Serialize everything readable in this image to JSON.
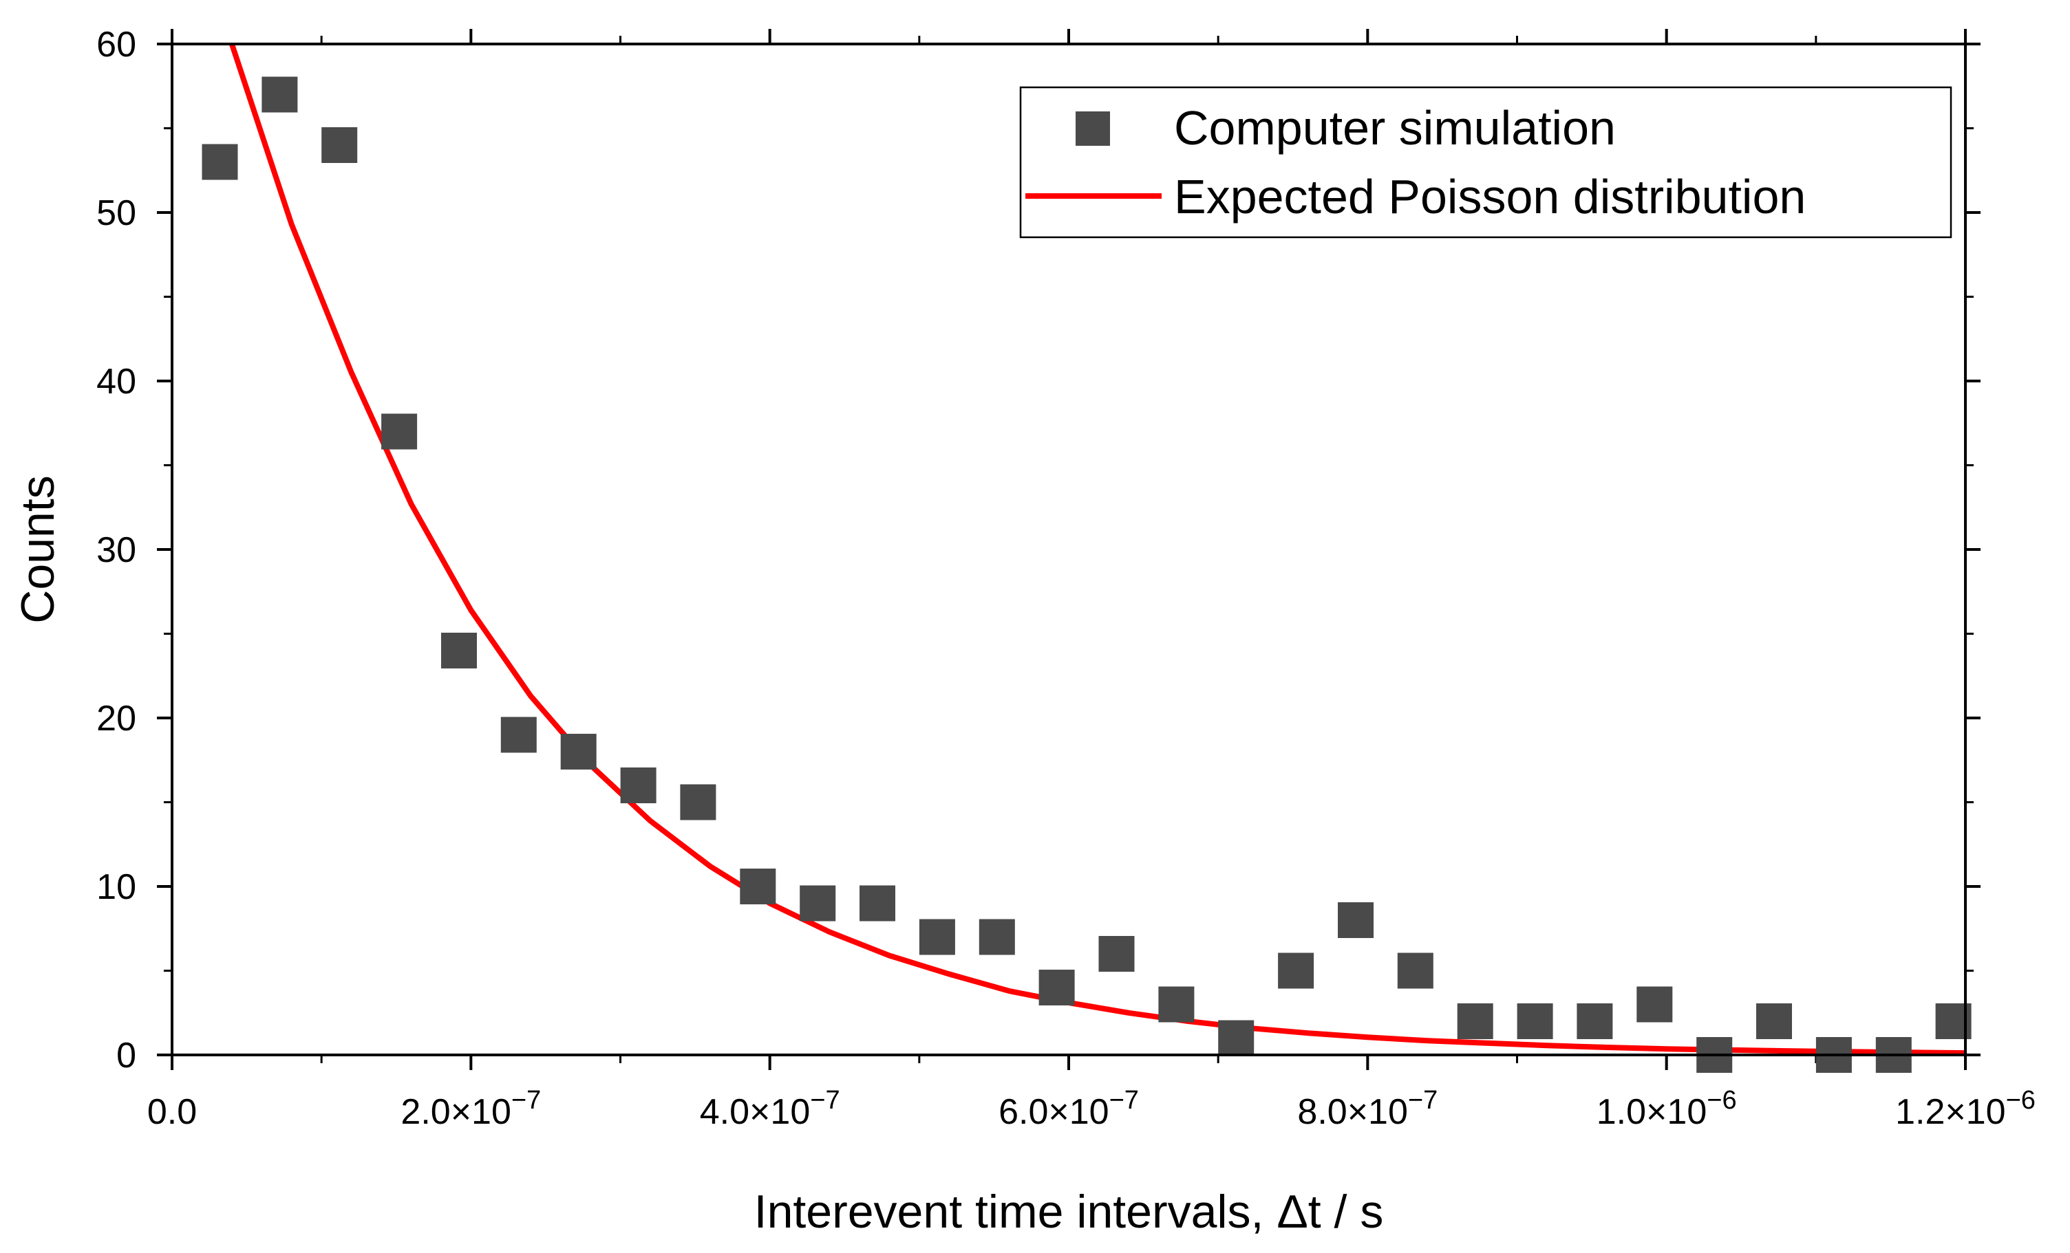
{
  "chart_data": {
    "type": "scatter",
    "title": "",
    "xlabel": "Interevent time intervals, Δt / s",
    "ylabel": "Counts",
    "xlim": [
      0,
      1.2e-06
    ],
    "ylim": [
      0,
      60
    ],
    "grid": false,
    "legend_position": "top-right",
    "x_ticks": [
      {
        "value": 0,
        "mantissa": "0.0",
        "exponent": ""
      },
      {
        "value": 2e-07,
        "mantissa": "2.0×10",
        "exponent": "−7"
      },
      {
        "value": 4e-07,
        "mantissa": "4.0×10",
        "exponent": "−7"
      },
      {
        "value": 6e-07,
        "mantissa": "6.0×10",
        "exponent": "−7"
      },
      {
        "value": 8e-07,
        "mantissa": "8.0×10",
        "exponent": "−7"
      },
      {
        "value": 1e-06,
        "mantissa": "1.0×10",
        "exponent": "−6"
      },
      {
        "value": 1.2e-06,
        "mantissa": "1.2×10",
        "exponent": "−6"
      }
    ],
    "y_ticks": [
      {
        "value": 0,
        "label": "0"
      },
      {
        "value": 10,
        "label": "10"
      },
      {
        "value": 20,
        "label": "20"
      },
      {
        "value": 30,
        "label": "30"
      },
      {
        "value": 40,
        "label": "40"
      },
      {
        "value": 50,
        "label": "50"
      },
      {
        "value": 60,
        "label": "60"
      }
    ],
    "series": [
      {
        "name": "Computer simulation",
        "kind": "scatter",
        "marker": "square",
        "color": "#4a4a4a",
        "x": [
          3.2e-08,
          7.2e-08,
          1.12e-07,
          1.52e-07,
          1.92e-07,
          2.32e-07,
          2.72e-07,
          3.12e-07,
          3.52e-07,
          3.92e-07,
          4.32e-07,
          4.72e-07,
          5.12e-07,
          5.52e-07,
          5.92e-07,
          6.32e-07,
          6.72e-07,
          7.12e-07,
          7.52e-07,
          7.92e-07,
          8.32e-07,
          8.72e-07,
          9.12e-07,
          9.52e-07,
          9.92e-07,
          1.032e-06,
          1.072e-06,
          1.112e-06,
          1.152e-06,
          1.192e-06
        ],
        "y": [
          53,
          57,
          54,
          37,
          24,
          19,
          18,
          16,
          15,
          10,
          9,
          9,
          7,
          7,
          4,
          6,
          3,
          1,
          5,
          8,
          5,
          2,
          2,
          2,
          3,
          0,
          2,
          0,
          0,
          2
        ]
      },
      {
        "name": "Expected Poisson distribution",
        "kind": "line",
        "color": "#ff0000",
        "x": [
          4e-08,
          8e-08,
          1.2e-07,
          1.6e-07,
          2e-07,
          2.4e-07,
          2.8e-07,
          3.2e-07,
          3.6e-07,
          4e-07,
          4.4e-07,
          4.8e-07,
          5.2e-07,
          5.6e-07,
          6e-07,
          6.4e-07,
          6.8e-07,
          7.2e-07,
          7.6e-07,
          8e-07,
          8.4e-07,
          8.8e-07,
          9.2e-07,
          9.6e-07,
          1e-06,
          1.04e-06,
          1.08e-06,
          1.12e-06,
          1.16e-06,
          1.2e-06
        ],
        "y": [
          60,
          49.3,
          40.5,
          32.7,
          26.4,
          21.3,
          17.2,
          13.9,
          11.2,
          9.0,
          7.3,
          5.9,
          4.8,
          3.8,
          3.1,
          2.5,
          2.0,
          1.6,
          1.3,
          1.05,
          0.85,
          0.7,
          0.56,
          0.45,
          0.36,
          0.3,
          0.24,
          0.19,
          0.15,
          0.12
        ]
      }
    ]
  }
}
